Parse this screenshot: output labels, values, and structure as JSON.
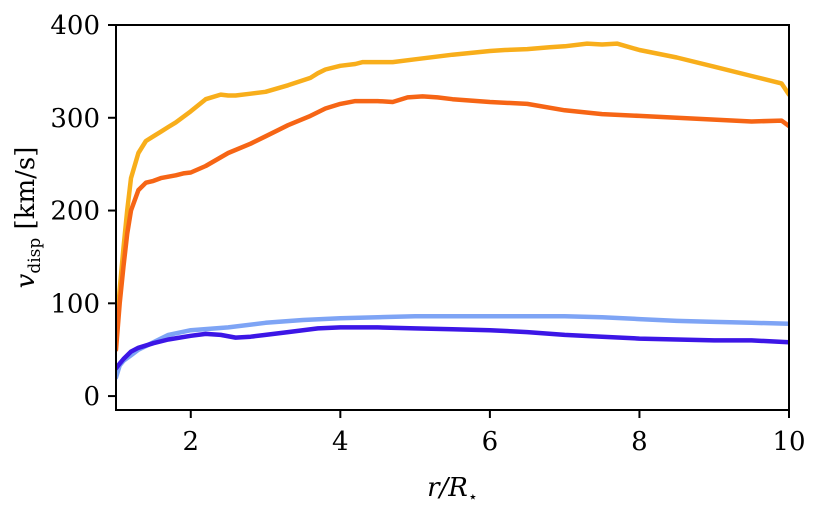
{
  "chart_data": {
    "type": "line",
    "xlabel": "r/R⋆",
    "ylabel": "v_disp [km/s]",
    "xlim": [
      1,
      10
    ],
    "ylim": [
      -15,
      400
    ],
    "xticks": [
      2,
      4,
      6,
      8,
      10
    ],
    "yticks": [
      0,
      100,
      200,
      300,
      400
    ],
    "grid": false,
    "legend": "none",
    "series": [
      {
        "color": "#f8ae1b",
        "x": [
          1.0,
          1.05,
          1.1,
          1.15,
          1.2,
          1.3,
          1.4,
          1.5,
          1.6,
          1.7,
          1.8,
          2.0,
          2.2,
          2.4,
          2.5,
          2.6,
          2.8,
          3.0,
          3.3,
          3.6,
          3.7,
          3.8,
          4.0,
          4.2,
          4.3,
          4.5,
          4.7,
          5.0,
          5.5,
          6.0,
          6.2,
          6.5,
          6.8,
          7.0,
          7.3,
          7.5,
          7.7,
          8.0,
          8.5,
          9.0,
          9.5,
          9.9,
          10.0
        ],
        "y": [
          60,
          115,
          160,
          200,
          235,
          262,
          275,
          280,
          285,
          290,
          295,
          307,
          320,
          325,
          324,
          324,
          326,
          328,
          335,
          343,
          348,
          352,
          356,
          358,
          360,
          360,
          360,
          363,
          368,
          372,
          373,
          374,
          376,
          377,
          380,
          379,
          380,
          373,
          365,
          355,
          345,
          337,
          325
        ]
      },
      {
        "color": "#f66515",
        "x": [
          1.0,
          1.05,
          1.1,
          1.15,
          1.2,
          1.3,
          1.4,
          1.5,
          1.6,
          1.8,
          1.9,
          2.0,
          2.2,
          2.5,
          2.8,
          3.0,
          3.3,
          3.6,
          3.8,
          4.0,
          4.2,
          4.5,
          4.7,
          4.9,
          5.1,
          5.3,
          5.5,
          6.0,
          6.5,
          7.0,
          7.5,
          8.0,
          8.5,
          9.0,
          9.5,
          9.9,
          10.0
        ],
        "y": [
          50,
          100,
          140,
          175,
          200,
          222,
          230,
          232,
          235,
          238,
          240,
          241,
          248,
          262,
          272,
          280,
          292,
          302,
          310,
          315,
          318,
          318,
          317,
          322,
          323,
          322,
          320,
          317,
          315,
          308,
          304,
          302,
          300,
          298,
          296,
          297,
          291
        ]
      },
      {
        "color": "#7ea4f5",
        "x": [
          1.0,
          1.05,
          1.1,
          1.2,
          1.3,
          1.5,
          1.7,
          2.0,
          2.5,
          3.0,
          3.5,
          4.0,
          4.5,
          5.0,
          5.5,
          6.0,
          6.5,
          7.0,
          7.5,
          8.0,
          8.5,
          9.0,
          9.5,
          10.0
        ],
        "y": [
          20,
          33,
          38,
          44,
          50,
          58,
          66,
          71,
          74,
          79,
          82,
          84,
          85,
          86,
          86,
          86,
          86,
          86,
          85,
          83,
          81,
          80,
          79,
          78
        ]
      },
      {
        "color": "#3c16e6",
        "x": [
          1.0,
          1.05,
          1.1,
          1.2,
          1.3,
          1.5,
          1.7,
          2.0,
          2.2,
          2.4,
          2.6,
          2.8,
          3.0,
          3.3,
          3.7,
          4.0,
          4.5,
          5.0,
          5.5,
          6.0,
          6.5,
          7.0,
          7.5,
          8.0,
          8.5,
          9.0,
          9.5,
          10.0
        ],
        "y": [
          30,
          35,
          40,
          48,
          52,
          57,
          61,
          65,
          67,
          66,
          63,
          64,
          66,
          69,
          73,
          74,
          74,
          73,
          72,
          71,
          69,
          66,
          64,
          62,
          61,
          60,
          60,
          58
        ]
      }
    ]
  }
}
